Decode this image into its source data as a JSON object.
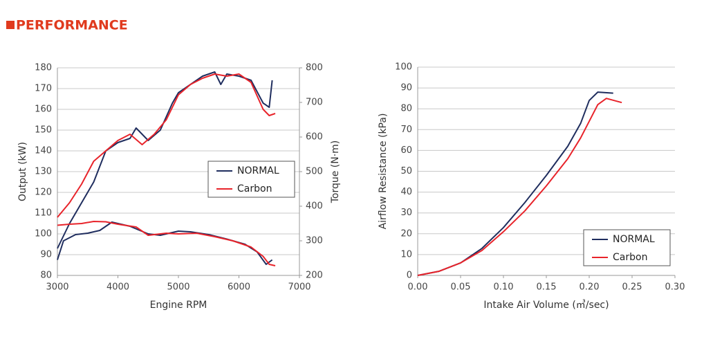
{
  "header": {
    "title": "PERFORMANCE"
  },
  "chart_data": [
    {
      "type": "line",
      "xlabel": "Engine RPM",
      "ylabel": "Output (kW)",
      "y2label": "Torque (N·m)",
      "xlim": [
        3000,
        7000
      ],
      "xticks": [
        3000,
        4000,
        5000,
        6000,
        7000
      ],
      "ylim": [
        80,
        180
      ],
      "yticks": [
        80,
        90,
        100,
        110,
        120,
        130,
        140,
        150,
        160,
        170,
        180
      ],
      "y2lim": [
        200,
        800
      ],
      "y2ticks": [
        200,
        300,
        400,
        500,
        600,
        700,
        800
      ],
      "grid": true,
      "legend": "center right",
      "series": [
        {
          "name": "NORMAL",
          "color": "#1f2d5e",
          "x": [
            3000,
            3200,
            3400,
            3600,
            3800,
            4000,
            4200,
            4300,
            4500,
            4700,
            4900,
            5000,
            5200,
            5400,
            5600,
            5700,
            5800,
            6000,
            6200,
            6400,
            6500,
            6550
          ],
          "values": [
            93,
            105,
            115,
            125,
            140,
            144,
            146,
            151,
            145,
            150,
            163,
            168,
            172,
            176,
            178,
            172,
            177,
            176,
            174,
            163,
            161,
            174
          ],
          "y2_x": [
            3000,
            3100,
            3300,
            3500,
            3700,
            3900,
            4200,
            4500,
            4700,
            5000,
            5200,
            5500,
            5800,
            6100,
            6300,
            6450,
            6550
          ],
          "y2_values": [
            245,
            300,
            318,
            322,
            330,
            354,
            342,
            320,
            316,
            328,
            326,
            318,
            305,
            290,
            268,
            232,
            245
          ]
        },
        {
          "name": "Carbon",
          "color": "#e8232a",
          "x": [
            3000,
            3200,
            3400,
            3600,
            3800,
            4000,
            4200,
            4400,
            4600,
            4800,
            5000,
            5200,
            5400,
            5600,
            5800,
            6000,
            6200,
            6400,
            6500,
            6600
          ],
          "values": [
            108,
            115,
            124,
            135,
            140,
            145,
            148,
            143,
            148,
            155,
            167,
            172,
            175,
            177,
            176,
            177,
            173,
            160,
            157,
            158
          ],
          "y2_x": [
            3000,
            3200,
            3400,
            3600,
            3800,
            4000,
            4300,
            4500,
            4800,
            5000,
            5300,
            5600,
            5900,
            6200,
            6400,
            6500,
            6600
          ],
          "y2_values": [
            345,
            348,
            350,
            356,
            355,
            348,
            340,
            316,
            322,
            320,
            322,
            312,
            300,
            282,
            255,
            232,
            228
          ]
        }
      ]
    },
    {
      "type": "line",
      "xlabel": "Intake Air Volume (㎥/sec)",
      "ylabel": "Airflow Resistance (kPa)",
      "xlim": [
        0,
        0.3
      ],
      "xticks": [
        {
          "value": 0,
          "label": "0.00"
        },
        {
          "value": 0.05,
          "label": "0.05"
        },
        {
          "value": 0.1,
          "label": "0.10"
        },
        {
          "value": 0.15,
          "label": "0.15"
        },
        {
          "value": 0.2,
          "label": "0.20"
        },
        {
          "value": 0.25,
          "label": "0.25"
        },
        {
          "value": 0.3,
          "label": "0.30"
        }
      ],
      "ylim": [
        0,
        100
      ],
      "yticks": [
        0,
        10,
        20,
        30,
        40,
        50,
        60,
        70,
        80,
        90,
        100
      ],
      "grid": true,
      "legend": "lower right",
      "series": [
        {
          "name": "NORMAL",
          "color": "#1f2d5e",
          "x": [
            0,
            0.025,
            0.05,
            0.075,
            0.1,
            0.125,
            0.15,
            0.175,
            0.19,
            0.2,
            0.21,
            0.228
          ],
          "values": [
            0,
            2,
            6,
            13,
            23,
            35,
            48,
            62,
            73,
            84,
            88,
            87.5
          ]
        },
        {
          "name": "Carbon",
          "color": "#e8232a",
          "x": [
            0,
            0.025,
            0.05,
            0.075,
            0.1,
            0.125,
            0.15,
            0.175,
            0.19,
            0.2,
            0.21,
            0.22,
            0.238
          ],
          "values": [
            0,
            2,
            6,
            12,
            21,
            31,
            43,
            56,
            66,
            74,
            82,
            85,
            83
          ]
        }
      ]
    }
  ]
}
